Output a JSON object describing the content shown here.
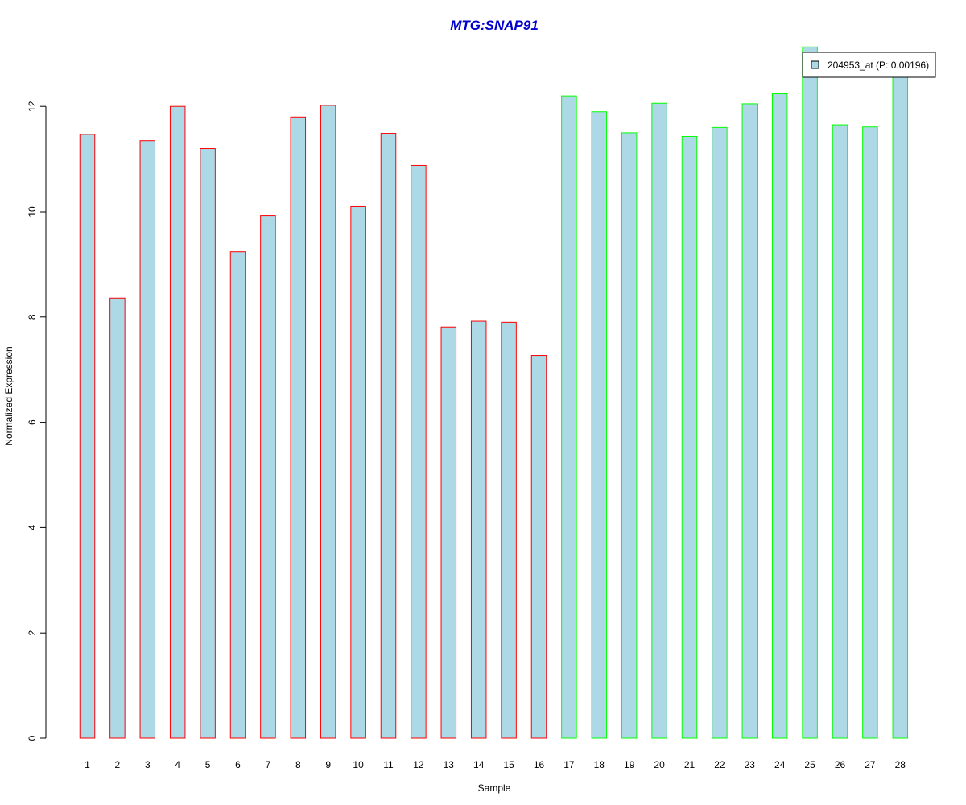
{
  "chart_data": {
    "type": "bar",
    "title": "MTG:SNAP91",
    "title_color": "#0000CC",
    "xlabel": "Sample",
    "ylabel": "Normalized Expression",
    "categories": [
      "1",
      "2",
      "3",
      "4",
      "5",
      "6",
      "7",
      "8",
      "9",
      "10",
      "11",
      "12",
      "13",
      "14",
      "15",
      "16",
      "17",
      "18",
      "19",
      "20",
      "21",
      "22",
      "23",
      "24",
      "25",
      "26",
      "27",
      "28"
    ],
    "series": [
      {
        "name": "204953_at (P: 0.00196)",
        "values": [
          11.47,
          8.36,
          11.35,
          12.0,
          11.2,
          9.24,
          9.93,
          11.8,
          12.02,
          10.1,
          11.49,
          10.88,
          7.81,
          7.92,
          7.9,
          7.27,
          12.2,
          11.9,
          11.5,
          12.06,
          11.43,
          11.6,
          12.05,
          12.24,
          13.13,
          11.65,
          11.61,
          12.58
        ],
        "fill": "#ADD8E6",
        "border_colors": [
          "#FF0000",
          "#FF0000",
          "#FF0000",
          "#FF0000",
          "#FF0000",
          "#FF0000",
          "#FF0000",
          "#FF0000",
          "#FF0000",
          "#FF0000",
          "#FF0000",
          "#FF0000",
          "#FF0000",
          "#FF0000",
          "#FF0000",
          "#FF0000",
          "#00FF00",
          "#00FF00",
          "#00FF00",
          "#00FF00",
          "#00FF00",
          "#00FF00",
          "#00FF00",
          "#00FF00",
          "#00FF00",
          "#00FF00",
          "#00FF00",
          "#00FF00"
        ]
      }
    ],
    "yticks": [
      "0",
      "2",
      "4",
      "6",
      "8",
      "10",
      "12"
    ],
    "ylim": [
      0,
      13.2
    ],
    "grid": false,
    "legend_position": "top-right"
  }
}
